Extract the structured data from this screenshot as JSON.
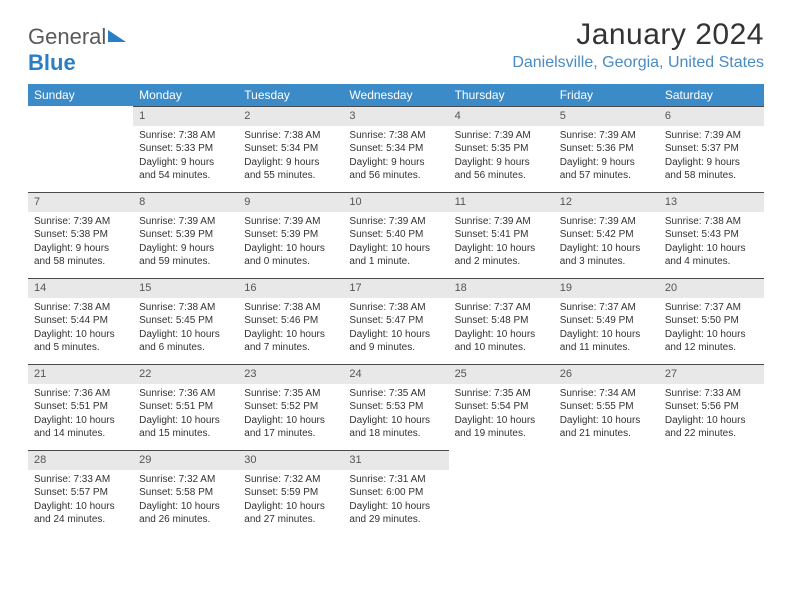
{
  "brand": {
    "part1": "General",
    "part2": "Blue"
  },
  "title": "January 2024",
  "location": "Danielsville, Georgia, United States",
  "colors": {
    "header_bg": "#3b8bc9",
    "header_text": "#ffffff",
    "daybar_bg": "#e8e8e8",
    "daybar_border": "#4a4a4a",
    "brand_blue": "#2a7fc4",
    "location_color": "#4a8bc2",
    "body_text": "#333333",
    "page_bg": "#ffffff"
  },
  "typography": {
    "title_fontsize": 30,
    "location_fontsize": 16,
    "weekday_fontsize": 12,
    "daynum_fontsize": 11,
    "cell_fontsize": 10
  },
  "weekdays": [
    "Sunday",
    "Monday",
    "Tuesday",
    "Wednesday",
    "Thursday",
    "Friday",
    "Saturday"
  ],
  "weeks": [
    [
      {
        "n": "",
        "sr": "",
        "ss": "",
        "dl": ""
      },
      {
        "n": "1",
        "sr": "Sunrise: 7:38 AM",
        "ss": "Sunset: 5:33 PM",
        "dl": "Daylight: 9 hours and 54 minutes."
      },
      {
        "n": "2",
        "sr": "Sunrise: 7:38 AM",
        "ss": "Sunset: 5:34 PM",
        "dl": "Daylight: 9 hours and 55 minutes."
      },
      {
        "n": "3",
        "sr": "Sunrise: 7:38 AM",
        "ss": "Sunset: 5:34 PM",
        "dl": "Daylight: 9 hours and 56 minutes."
      },
      {
        "n": "4",
        "sr": "Sunrise: 7:39 AM",
        "ss": "Sunset: 5:35 PM",
        "dl": "Daylight: 9 hours and 56 minutes."
      },
      {
        "n": "5",
        "sr": "Sunrise: 7:39 AM",
        "ss": "Sunset: 5:36 PM",
        "dl": "Daylight: 9 hours and 57 minutes."
      },
      {
        "n": "6",
        "sr": "Sunrise: 7:39 AM",
        "ss": "Sunset: 5:37 PM",
        "dl": "Daylight: 9 hours and 58 minutes."
      }
    ],
    [
      {
        "n": "7",
        "sr": "Sunrise: 7:39 AM",
        "ss": "Sunset: 5:38 PM",
        "dl": "Daylight: 9 hours and 58 minutes."
      },
      {
        "n": "8",
        "sr": "Sunrise: 7:39 AM",
        "ss": "Sunset: 5:39 PM",
        "dl": "Daylight: 9 hours and 59 minutes."
      },
      {
        "n": "9",
        "sr": "Sunrise: 7:39 AM",
        "ss": "Sunset: 5:39 PM",
        "dl": "Daylight: 10 hours and 0 minutes."
      },
      {
        "n": "10",
        "sr": "Sunrise: 7:39 AM",
        "ss": "Sunset: 5:40 PM",
        "dl": "Daylight: 10 hours and 1 minute."
      },
      {
        "n": "11",
        "sr": "Sunrise: 7:39 AM",
        "ss": "Sunset: 5:41 PM",
        "dl": "Daylight: 10 hours and 2 minutes."
      },
      {
        "n": "12",
        "sr": "Sunrise: 7:39 AM",
        "ss": "Sunset: 5:42 PM",
        "dl": "Daylight: 10 hours and 3 minutes."
      },
      {
        "n": "13",
        "sr": "Sunrise: 7:38 AM",
        "ss": "Sunset: 5:43 PM",
        "dl": "Daylight: 10 hours and 4 minutes."
      }
    ],
    [
      {
        "n": "14",
        "sr": "Sunrise: 7:38 AM",
        "ss": "Sunset: 5:44 PM",
        "dl": "Daylight: 10 hours and 5 minutes."
      },
      {
        "n": "15",
        "sr": "Sunrise: 7:38 AM",
        "ss": "Sunset: 5:45 PM",
        "dl": "Daylight: 10 hours and 6 minutes."
      },
      {
        "n": "16",
        "sr": "Sunrise: 7:38 AM",
        "ss": "Sunset: 5:46 PM",
        "dl": "Daylight: 10 hours and 7 minutes."
      },
      {
        "n": "17",
        "sr": "Sunrise: 7:38 AM",
        "ss": "Sunset: 5:47 PM",
        "dl": "Daylight: 10 hours and 9 minutes."
      },
      {
        "n": "18",
        "sr": "Sunrise: 7:37 AM",
        "ss": "Sunset: 5:48 PM",
        "dl": "Daylight: 10 hours and 10 minutes."
      },
      {
        "n": "19",
        "sr": "Sunrise: 7:37 AM",
        "ss": "Sunset: 5:49 PM",
        "dl": "Daylight: 10 hours and 11 minutes."
      },
      {
        "n": "20",
        "sr": "Sunrise: 7:37 AM",
        "ss": "Sunset: 5:50 PM",
        "dl": "Daylight: 10 hours and 12 minutes."
      }
    ],
    [
      {
        "n": "21",
        "sr": "Sunrise: 7:36 AM",
        "ss": "Sunset: 5:51 PM",
        "dl": "Daylight: 10 hours and 14 minutes."
      },
      {
        "n": "22",
        "sr": "Sunrise: 7:36 AM",
        "ss": "Sunset: 5:51 PM",
        "dl": "Daylight: 10 hours and 15 minutes."
      },
      {
        "n": "23",
        "sr": "Sunrise: 7:35 AM",
        "ss": "Sunset: 5:52 PM",
        "dl": "Daylight: 10 hours and 17 minutes."
      },
      {
        "n": "24",
        "sr": "Sunrise: 7:35 AM",
        "ss": "Sunset: 5:53 PM",
        "dl": "Daylight: 10 hours and 18 minutes."
      },
      {
        "n": "25",
        "sr": "Sunrise: 7:35 AM",
        "ss": "Sunset: 5:54 PM",
        "dl": "Daylight: 10 hours and 19 minutes."
      },
      {
        "n": "26",
        "sr": "Sunrise: 7:34 AM",
        "ss": "Sunset: 5:55 PM",
        "dl": "Daylight: 10 hours and 21 minutes."
      },
      {
        "n": "27",
        "sr": "Sunrise: 7:33 AM",
        "ss": "Sunset: 5:56 PM",
        "dl": "Daylight: 10 hours and 22 minutes."
      }
    ],
    [
      {
        "n": "28",
        "sr": "Sunrise: 7:33 AM",
        "ss": "Sunset: 5:57 PM",
        "dl": "Daylight: 10 hours and 24 minutes."
      },
      {
        "n": "29",
        "sr": "Sunrise: 7:32 AM",
        "ss": "Sunset: 5:58 PM",
        "dl": "Daylight: 10 hours and 26 minutes."
      },
      {
        "n": "30",
        "sr": "Sunrise: 7:32 AM",
        "ss": "Sunset: 5:59 PM",
        "dl": "Daylight: 10 hours and 27 minutes."
      },
      {
        "n": "31",
        "sr": "Sunrise: 7:31 AM",
        "ss": "Sunset: 6:00 PM",
        "dl": "Daylight: 10 hours and 29 minutes."
      },
      {
        "n": "",
        "sr": "",
        "ss": "",
        "dl": ""
      },
      {
        "n": "",
        "sr": "",
        "ss": "",
        "dl": ""
      },
      {
        "n": "",
        "sr": "",
        "ss": "",
        "dl": ""
      }
    ]
  ]
}
